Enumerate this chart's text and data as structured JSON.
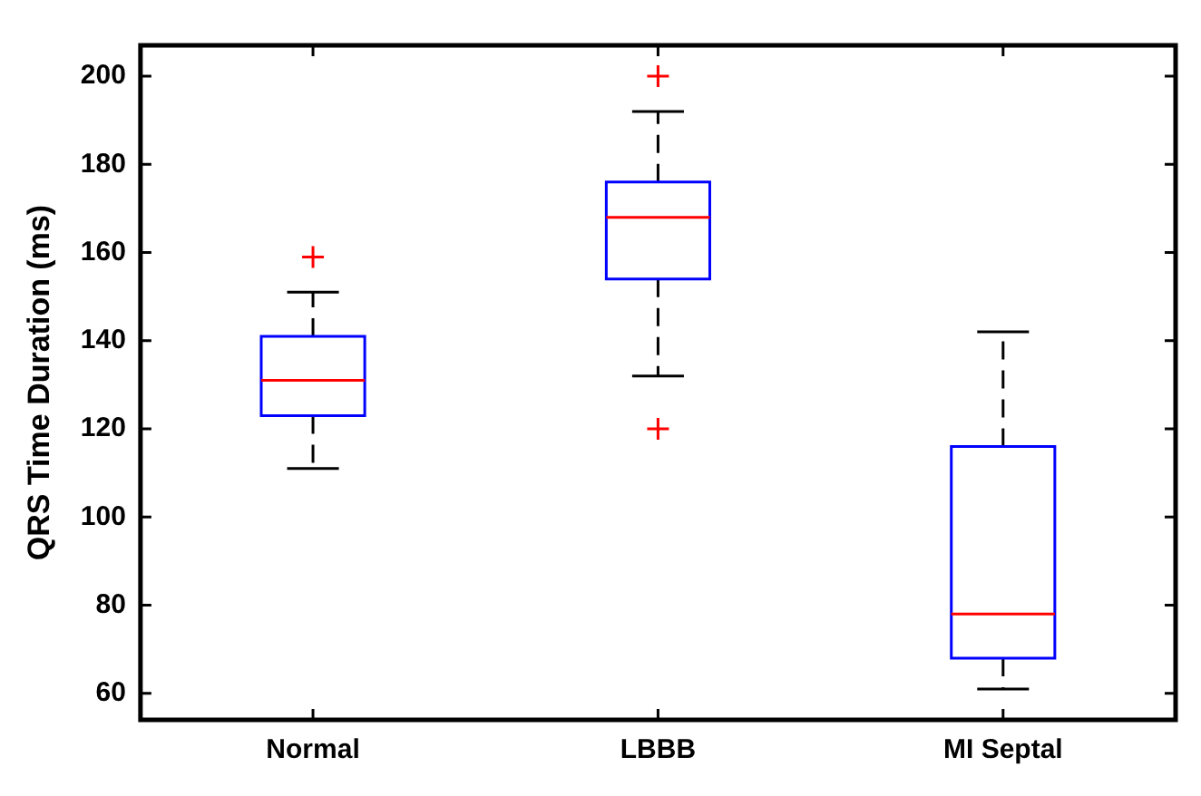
{
  "chart_data": {
    "type": "box",
    "ylabel": "QRS Time Duration (ms)",
    "categories": [
      "Normal",
      "LBBB",
      "MI Septal"
    ],
    "series": [
      {
        "color": "#0000ff",
        "boxes": [
          {
            "low": 111,
            "q1": 123,
            "median": 131,
            "q3": 141,
            "high": 151,
            "outliers": [
              159
            ]
          },
          {
            "low": 132,
            "q1": 154,
            "median": 168,
            "q3": 176,
            "high": 192,
            "outliers": [
              200,
              120
            ]
          },
          {
            "low": 61,
            "q1": 68,
            "median": 78,
            "q3": 116,
            "high": 142
          }
        ]
      }
    ],
    "ylim": [
      54,
      207
    ],
    "yticks": [
      60,
      80,
      100,
      120,
      140,
      160,
      180,
      200
    ],
    "grid": false,
    "legend": false
  }
}
